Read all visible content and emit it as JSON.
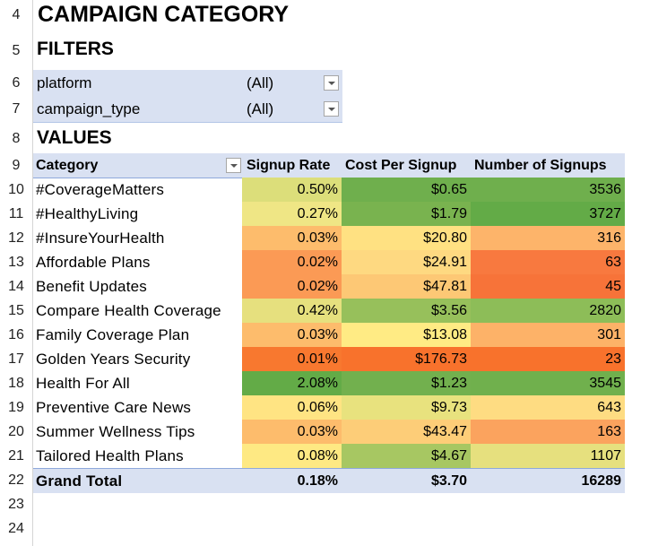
{
  "row_numbers": [
    "4",
    "5",
    "6",
    "7",
    "8",
    "9",
    "10",
    "11",
    "12",
    "13",
    "14",
    "15",
    "16",
    "17",
    "18",
    "19",
    "20",
    "21",
    "22",
    "23",
    "24"
  ],
  "title": "CAMPAIGN CATEGORY",
  "filters_heading": "FILTERS",
  "filters": [
    {
      "label": "platform",
      "value": "(All)"
    },
    {
      "label": "campaign_type",
      "value": "(All)"
    }
  ],
  "values_heading": "VALUES",
  "columns": [
    "Category",
    "Signup Rate",
    "Cost Per Signup",
    "Number of Signups"
  ],
  "rows": [
    {
      "category": "#CoverageMatters",
      "rate": "0.50%",
      "cost": "$0.65",
      "signups": "3536",
      "colors": [
        "#dcde7a",
        "#6faf4d",
        "#6faf4d"
      ]
    },
    {
      "category": "#HealthyLiving",
      "rate": "0.27%",
      "cost": "$1.79",
      "signups": "3727",
      "colors": [
        "#efe685",
        "#79b34f",
        "#63ab47"
      ]
    },
    {
      "category": "#InsureYourHealth",
      "rate": "0.03%",
      "cost": "$20.80",
      "signups": "316",
      "colors": [
        "#fdbc6c",
        "#ffe182",
        "#fdb46a"
      ]
    },
    {
      "category": "Affordable Plans",
      "rate": "0.02%",
      "cost": "$24.91",
      "signups": "63",
      "colors": [
        "#fb9a55",
        "#fed981",
        "#f8793f"
      ]
    },
    {
      "category": "Benefit Updates",
      "rate": "0.02%",
      "cost": "$47.81",
      "signups": "45",
      "colors": [
        "#fb9a55",
        "#fdc875",
        "#f77339"
      ]
    },
    {
      "category": "Compare Health Coverage",
      "rate": "0.42%",
      "cost": "$3.56",
      "signups": "2820",
      "colors": [
        "#e6e07e",
        "#97c05b",
        "#8dbd58"
      ]
    },
    {
      "category": "Family Coverage Plan",
      "rate": "0.03%",
      "cost": "$13.08",
      "signups": "301",
      "colors": [
        "#fdbc6c",
        "#ffeb84",
        "#fdb268"
      ]
    },
    {
      "category": "Golden Years Security",
      "rate": "0.01%",
      "cost": "$176.73",
      "signups": "23",
      "colors": [
        "#f8782f",
        "#f8722c",
        "#f8722c"
      ]
    },
    {
      "category": "Health For All",
      "rate": "2.08%",
      "cost": "$1.23",
      "signups": "3545",
      "colors": [
        "#63ab47",
        "#72b04e",
        "#70b04d"
      ]
    },
    {
      "category": "Preventive Care News",
      "rate": "0.06%",
      "cost": "$9.73",
      "signups": "643",
      "colors": [
        "#ffe483",
        "#e8e27e",
        "#fedc82"
      ]
    },
    {
      "category": "Summer Wellness Tips",
      "rate": "0.03%",
      "cost": "$43.47",
      "signups": "163",
      "colors": [
        "#fdbc6c",
        "#fdcd78",
        "#fba35e"
      ]
    },
    {
      "category": "Tailored Health Plans",
      "rate": "0.08%",
      "cost": "$4.67",
      "signups": "1107",
      "colors": [
        "#fee983",
        "#a7c762",
        "#e6e07e"
      ]
    }
  ],
  "grand_total": {
    "label": "Grand Total",
    "rate": "0.18%",
    "cost": "$3.70",
    "signups": "16289"
  }
}
